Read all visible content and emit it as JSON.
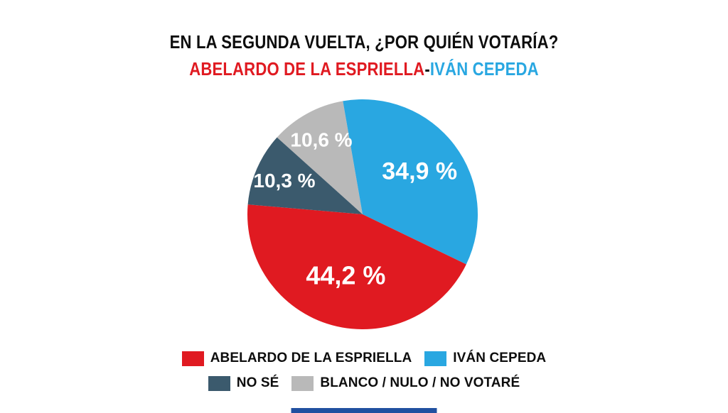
{
  "page": {
    "background": "#ffffff",
    "bottom_bar_color": "#2150a0"
  },
  "chart_data": {
    "type": "pie",
    "title": "EN LA SEGUNDA VUELTA, ¿POR QUIÉN VOTARÍA?",
    "subtitle": {
      "left": "ABELARDO DE LA ESPRIELLA",
      "separator": "-",
      "right": "IVÁN CEPEDA"
    },
    "subtitle_colors": {
      "left": "#e01a21",
      "right": "#29a7e1"
    },
    "label_color": "#ffffff",
    "start_angle_deg": -48,
    "slices": [
      {
        "name": "BLANCO / NULO / NO VOTARÉ",
        "value": 10.6,
        "label": "10,6 %",
        "color": "#b9b9b9",
        "label_r": 0.74,
        "label_size": 28
      },
      {
        "name": "IVÁN CEPEDA",
        "value": 34.9,
        "label": "34,9 %",
        "color": "#29a7e1",
        "label_r": 0.62,
        "label_size": 34
      },
      {
        "name": "ABELARDO DE LA ESPRIELLA",
        "value": 44.2,
        "label": "44,2 %",
        "color": "#e01a21",
        "label_r": 0.55,
        "label_size": 36
      },
      {
        "name": "NO SÉ",
        "value": 10.3,
        "label": "10,3 %",
        "color": "#3b5a6d",
        "label_r": 0.74,
        "label_size": 28
      }
    ],
    "legend": {
      "position": "bottom",
      "rows": [
        [
          {
            "label": "ABELARDO DE LA ESPRIELLA",
            "color": "#e01a21"
          },
          {
            "label": "IVÁN CEPEDA",
            "color": "#29a7e1"
          }
        ],
        [
          {
            "label": "NO SÉ",
            "color": "#3b5a6d"
          },
          {
            "label": "BLANCO / NULO / NO VOTARÉ",
            "color": "#b9b9b9"
          }
        ]
      ]
    }
  }
}
